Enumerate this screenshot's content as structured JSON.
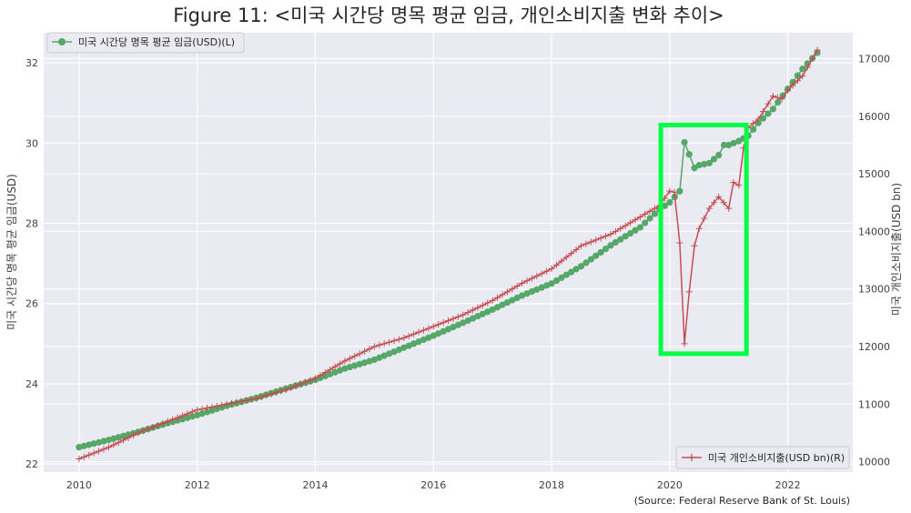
{
  "chart_data": {
    "type": "line",
    "title": "Figure 11: <미국 시간당 명목 평균 임금, 개인소비지출 변화 추이>",
    "source": "(Source: Federal Reserve Bank of St. Louis)",
    "grid": true,
    "colors": {
      "wage": "#55a868",
      "pce": "#c44e52",
      "highlight": "#00ff44",
      "grid": "#ffffff",
      "plot_bg": "#eaeaf2"
    },
    "x_axis": {
      "range": [
        2009.4,
        2023.1
      ],
      "ticks": [
        2010,
        2012,
        2014,
        2016,
        2018,
        2020,
        2022
      ],
      "tick_labels": [
        "2010",
        "2012",
        "2014",
        "2016",
        "2018",
        "2020",
        "2022"
      ]
    },
    "y_left": {
      "label": "미국 시간당 명목 평균 임금(USD)",
      "range": [
        21.8,
        32.75
      ],
      "ticks": [
        22,
        24,
        26,
        28,
        30,
        32
      ],
      "tick_labels": [
        "22",
        "24",
        "26",
        "28",
        "30",
        "32"
      ]
    },
    "y_right": {
      "label": "미국 개인소비지출(USD bn)",
      "range": [
        9820,
        17450
      ],
      "ticks": [
        10000,
        11000,
        12000,
        13000,
        14000,
        15000,
        16000,
        17000
      ],
      "tick_labels": [
        "10000",
        "11000",
        "12000",
        "13000",
        "14000",
        "15000",
        "16000",
        "17000"
      ]
    },
    "legend_left": {
      "label": "미국 시간당 명목 평균 임금(USD)(L)",
      "placement": "upper-left"
    },
    "legend_right": {
      "label": "미국 개인소비지출(USD bn)(R)",
      "placement": "lower-right"
    },
    "highlight": {
      "x_range": [
        2019.85,
        2021.3
      ],
      "y_range": [
        24.75,
        30.45
      ],
      "axis": "left"
    },
    "series": [
      {
        "name": "미국 시간당 명목 평균 임금(USD)(L)",
        "axis": "left",
        "marker": "circle",
        "points": [
          [
            2010.0,
            22.42
          ],
          [
            2010.5,
            22.6
          ],
          [
            2011.0,
            22.8
          ],
          [
            2011.5,
            23.02
          ],
          [
            2012.0,
            23.22
          ],
          [
            2012.5,
            23.45
          ],
          [
            2013.0,
            23.65
          ],
          [
            2013.5,
            23.88
          ],
          [
            2014.0,
            24.1
          ],
          [
            2014.5,
            24.38
          ],
          [
            2015.0,
            24.6
          ],
          [
            2015.5,
            24.9
          ],
          [
            2016.0,
            25.2
          ],
          [
            2016.5,
            25.52
          ],
          [
            2017.0,
            25.85
          ],
          [
            2017.5,
            26.2
          ],
          [
            2018.0,
            26.5
          ],
          [
            2018.5,
            26.93
          ],
          [
            2019.0,
            27.45
          ],
          [
            2019.5,
            27.9
          ],
          [
            2019.83,
            28.35
          ],
          [
            2020.0,
            28.52
          ],
          [
            2020.17,
            28.8
          ],
          [
            2020.25,
            30.02
          ],
          [
            2020.33,
            29.72
          ],
          [
            2020.42,
            29.38
          ],
          [
            2020.5,
            29.45
          ],
          [
            2020.67,
            29.5
          ],
          [
            2020.83,
            29.7
          ],
          [
            2020.92,
            29.95
          ],
          [
            2021.0,
            29.95
          ],
          [
            2021.17,
            30.05
          ],
          [
            2021.33,
            30.18
          ],
          [
            2021.5,
            30.5
          ],
          [
            2021.75,
            30.85
          ],
          [
            2022.0,
            31.35
          ],
          [
            2022.25,
            31.85
          ],
          [
            2022.5,
            32.25
          ]
        ]
      },
      {
        "name": "미국 개인소비지출(USD bn)(R)",
        "axis": "right",
        "marker": "plus",
        "points": [
          [
            2010.0,
            10050
          ],
          [
            2010.5,
            10250
          ],
          [
            2011.0,
            10500
          ],
          [
            2011.5,
            10700
          ],
          [
            2012.0,
            10900
          ],
          [
            2012.5,
            11000
          ],
          [
            2013.0,
            11100
          ],
          [
            2013.5,
            11250
          ],
          [
            2014.0,
            11450
          ],
          [
            2014.5,
            11750
          ],
          [
            2015.0,
            12000
          ],
          [
            2015.5,
            12150
          ],
          [
            2016.0,
            12350
          ],
          [
            2016.5,
            12550
          ],
          [
            2017.0,
            12800
          ],
          [
            2017.5,
            13100
          ],
          [
            2018.0,
            13350
          ],
          [
            2018.5,
            13750
          ],
          [
            2019.0,
            13950
          ],
          [
            2019.5,
            14250
          ],
          [
            2019.83,
            14450
          ],
          [
            2020.0,
            14700
          ],
          [
            2020.08,
            14680
          ],
          [
            2020.17,
            13800
          ],
          [
            2020.25,
            12050
          ],
          [
            2020.33,
            12950
          ],
          [
            2020.42,
            13750
          ],
          [
            2020.5,
            14050
          ],
          [
            2020.67,
            14400
          ],
          [
            2020.83,
            14600
          ],
          [
            2021.0,
            14400
          ],
          [
            2021.08,
            14850
          ],
          [
            2021.17,
            14800
          ],
          [
            2021.25,
            15450
          ],
          [
            2021.33,
            15800
          ],
          [
            2021.5,
            15950
          ],
          [
            2021.75,
            16350
          ],
          [
            2021.9,
            16300
          ],
          [
            2022.0,
            16450
          ],
          [
            2022.25,
            16700
          ],
          [
            2022.5,
            17150
          ]
        ]
      }
    ]
  }
}
